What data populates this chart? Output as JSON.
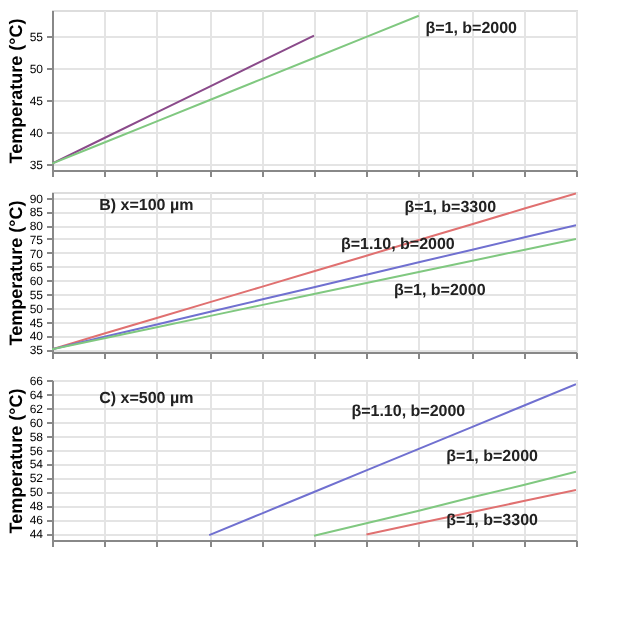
{
  "chart_data": [
    {
      "type": "line",
      "ylabel": "Temperature (°C)",
      "categories": [
        null,
        null,
        null,
        null,
        null,
        null,
        null,
        null,
        null,
        null,
        null
      ],
      "ylim": [
        34,
        59
      ],
      "yticks": [
        35,
        40,
        45,
        50,
        55
      ],
      "grid": true,
      "tick_labels": "y",
      "series": [
        {
          "color": "#8a4a8a",
          "values": [
            35,
            39,
            43,
            47,
            51,
            55,
            null,
            null,
            null,
            null,
            null
          ]
        },
        {
          "color": "#80c880",
          "values": [
            35,
            38.3,
            41.6,
            44.9,
            48.2,
            51.5,
            54.8,
            58.1,
            null,
            null,
            null
          ]
        }
      ],
      "annotations": [
        "β=1, b=2000"
      ]
    },
    {
      "type": "line",
      "ylabel": "Temperature (°C)",
      "categories": [
        null,
        null,
        null,
        null,
        null,
        null,
        null,
        null,
        null,
        null,
        null
      ],
      "ylim": [
        34,
        92
      ],
      "yticks": [
        35,
        40,
        45,
        50,
        55,
        60,
        65,
        70,
        75,
        80,
        85,
        90
      ],
      "grid": true,
      "tick_labels": "y",
      "series": [
        {
          "color": "#e07070",
          "values": [
            35,
            40.7,
            46.3,
            52,
            57.6,
            63.3,
            68.9,
            74.6,
            80.2,
            85.9,
            91.5
          ]
        },
        {
          "color": "#7070d0",
          "values": [
            35,
            39.5,
            44,
            48.5,
            53,
            57.5,
            62,
            66.5,
            71,
            75.5,
            80
          ]
        },
        {
          "color": "#80c880",
          "values": [
            35,
            39,
            43,
            47,
            51,
            55,
            59,
            63,
            67,
            71,
            75
          ]
        }
      ],
      "annotations": [
        "B) x=100 µm",
        "β=1, b=3300",
        "β=1.10, b=2000",
        "β=1, b=2000"
      ]
    },
    {
      "type": "line",
      "ylabel": "Temperature (°C)",
      "categories": [
        null,
        null,
        null,
        null,
        null,
        null,
        null,
        null,
        null,
        null,
        null
      ],
      "ylim": [
        43,
        66
      ],
      "yticks": [
        44,
        46,
        48,
        50,
        52,
        54,
        56,
        58,
        60,
        62,
        64,
        66
      ],
      "grid": true,
      "tick_labels": "y",
      "series": [
        {
          "color": "#7070d0",
          "values": [
            null,
            null,
            null,
            43.7,
            46.8,
            49.9,
            53,
            56.1,
            59.2,
            62.3,
            65.4
          ]
        },
        {
          "color": "#80c880",
          "values": [
            null,
            null,
            null,
            null,
            null,
            43.6,
            45.4,
            47.2,
            49.1,
            50.9,
            52.8
          ]
        },
        {
          "color": "#e07070",
          "values": [
            null,
            null,
            null,
            null,
            null,
            null,
            43.8,
            45.4,
            47,
            48.6,
            50.2
          ]
        }
      ],
      "annotations": [
        "C) x=500 µm",
        "β=1.10, b=2000",
        "β=1, b=2000",
        "β=1, b=3300"
      ]
    }
  ]
}
